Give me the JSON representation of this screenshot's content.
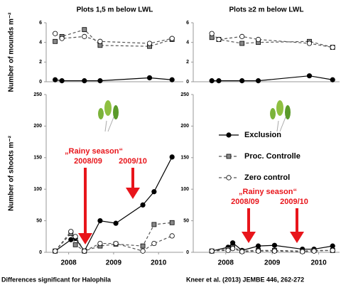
{
  "chart_data": [
    {
      "type": "line",
      "title": "Plots 1,5 m below LWL",
      "ylabel": "Number of mounds m⁻²",
      "xlim": [
        2008.0,
        2011.05
      ],
      "ylim": [
        0,
        6
      ],
      "yticks": [
        0,
        2,
        4,
        6
      ],
      "x": [
        2008.2,
        2008.35,
        2008.85,
        2009.2,
        2010.3,
        2010.8
      ],
      "series": [
        {
          "color": "#000000",
          "marker": "circle",
          "marker_fill": "#000000",
          "dashed": false,
          "values": [
            0.2,
            0.1,
            0.1,
            0.1,
            0.4,
            0.2
          ]
        },
        {
          "color": "#555555",
          "marker": "square",
          "marker_fill": "#888888",
          "dashed": true,
          "values": [
            4.1,
            4.6,
            5.3,
            3.7,
            3.6,
            4.3
          ]
        },
        {
          "color": "#555555",
          "marker": "circle",
          "marker_fill": "#ffffff",
          "dashed": true,
          "values": [
            4.9,
            4.4,
            4.6,
            4.1,
            3.9,
            4.4
          ]
        }
      ]
    },
    {
      "type": "line",
      "title": "Plots ≥2 m below LWL",
      "xlim": [
        2007.8,
        2010.95
      ],
      "ylim": [
        0,
        6
      ],
      "yticks": [
        0,
        2,
        4,
        6
      ],
      "x": [
        2008.2,
        2008.35,
        2008.85,
        2009.2,
        2010.3,
        2010.8
      ],
      "series": [
        {
          "color": "#000000",
          "marker": "circle",
          "marker_fill": "#000000",
          "dashed": false,
          "values": [
            0.1,
            0.1,
            0.1,
            0.1,
            0.6,
            0.2
          ]
        },
        {
          "color": "#555555",
          "marker": "square",
          "marker_fill": "#888888",
          "dashed": true,
          "values": [
            4.5,
            4.3,
            3.9,
            4.0,
            4.1,
            3.5
          ]
        },
        {
          "color": "#555555",
          "marker": "circle",
          "marker_fill": "#ffffff",
          "dashed": true,
          "values": [
            4.9,
            4.3,
            4.6,
            4.3,
            3.9,
            3.5
          ]
        }
      ]
    },
    {
      "type": "line",
      "ylabel": "Number of shoots m⁻²",
      "xlim": [
        2008.0,
        2011.05
      ],
      "ylim": [
        0,
        250
      ],
      "yticks": [
        0,
        50,
        100,
        150,
        200,
        250
      ],
      "xticks": [
        {
          "value": 2008.5,
          "label": "2008"
        },
        {
          "value": 2009.5,
          "label": "2009"
        },
        {
          "value": 2010.5,
          "label": "2010"
        }
      ],
      "x": [
        2008.2,
        2008.55,
        2008.65,
        2008.85,
        2009.2,
        2009.55,
        2010.15,
        2010.4,
        2010.8
      ],
      "series": [
        {
          "color": "#000000",
          "marker": "circle",
          "marker_fill": "#000000",
          "dashed": false,
          "values": [
            2,
            20,
            22,
            2,
            50,
            46,
            75,
            96,
            151
          ]
        },
        {
          "color": "#555555",
          "marker": "square",
          "marker_fill": "#888888",
          "dashed": true,
          "values": [
            2,
            30,
            12,
            2,
            10,
            13,
            10,
            44,
            47
          ]
        },
        {
          "color": "#555555",
          "marker": "circle",
          "marker_fill": "#ffffff",
          "dashed": true,
          "values": [
            2,
            33,
            25,
            2,
            14,
            14,
            2,
            14,
            26
          ]
        }
      ],
      "annotations": [
        "„Rainy season“",
        "2008/09",
        "2009/10"
      ]
    },
    {
      "type": "line",
      "legend": "right",
      "xlim": [
        2007.8,
        2010.95
      ],
      "ylim": [
        0,
        250
      ],
      "yticks": [
        0,
        50,
        100,
        150,
        200,
        250
      ],
      "xticks": [
        {
          "value": 2008.5,
          "label": "2008"
        },
        {
          "value": 2009.5,
          "label": "2009"
        },
        {
          "value": 2010.5,
          "label": "2010"
        }
      ],
      "x": [
        2008.2,
        2008.55,
        2008.65,
        2008.85,
        2009.2,
        2009.55,
        2010.15,
        2010.4,
        2010.8
      ],
      "series": [
        {
          "name": "Exclusion",
          "color": "#000000",
          "marker": "circle",
          "marker_fill": "#000000",
          "dashed": false,
          "values": [
            2,
            8,
            15,
            3,
            10,
            11,
            5,
            5,
            10
          ]
        },
        {
          "name": "Proc. Controlle",
          "color": "#555555",
          "marker": "square",
          "marker_fill": "#888888",
          "dashed": true,
          "values": [
            2,
            5,
            8,
            2,
            3,
            3,
            2,
            3,
            3
          ]
        },
        {
          "name": "Zero control",
          "color": "#555555",
          "marker": "circle",
          "marker_fill": "#ffffff",
          "dashed": true,
          "values": [
            2,
            3,
            6,
            1,
            2,
            2,
            1,
            2,
            3
          ]
        }
      ],
      "annotations": [
        "„Rainy season“",
        "2008/09",
        "2009/10"
      ]
    }
  ],
  "footer": {
    "left": "Differences significant for Halophila",
    "right": "Kneer et al. (2013) JEMBE 446, 262-272"
  }
}
